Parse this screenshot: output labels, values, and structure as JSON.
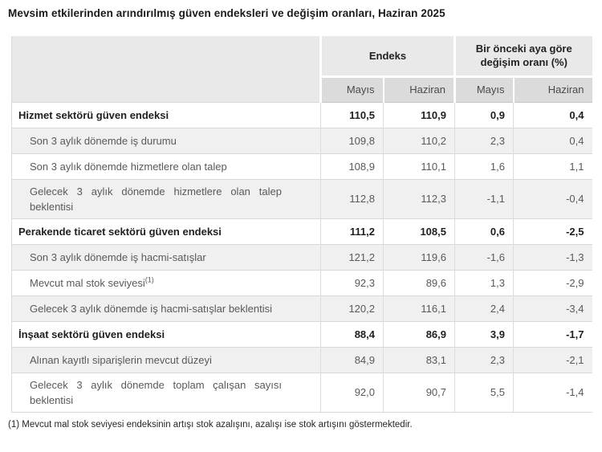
{
  "page": {
    "title": "Mevsim etkilerinden arındırılmış güven endeksleri ve değişim oranları, Haziran 2025",
    "footnote": "(1) Mevcut mal stok seviyesi endeksinin artışı stok azalışını, azalışı ise stok artışını göstermektedir."
  },
  "table": {
    "group_headers": [
      {
        "label": "Endeks"
      },
      {
        "label": "Bir önceki aya göre değişim oranı (%)"
      }
    ],
    "sub_headers": [
      "Mayıs",
      "Haziran",
      "Mayıs",
      "Haziran"
    ],
    "rows": [
      {
        "label": "Hizmet sektörü güven endeksi",
        "type": "section",
        "shaded": false,
        "values": [
          "110,5",
          "110,9",
          "0,9",
          "0,4"
        ]
      },
      {
        "label": "Son 3 aylık dönemde iş durumu",
        "type": "sub",
        "shaded": true,
        "values": [
          "109,8",
          "110,2",
          "2,3",
          "0,4"
        ]
      },
      {
        "label": "Son 3 aylık dönemde hizmetlere olan talep",
        "type": "sub",
        "shaded": false,
        "values": [
          "108,9",
          "110,1",
          "1,6",
          "1,1"
        ]
      },
      {
        "label": "Gelecek 3 aylık dönemde hizmetlere olan talep beklentisi",
        "type": "sub",
        "shaded": true,
        "values": [
          "112,8",
          "112,3",
          "-1,1",
          "-0,4"
        ]
      },
      {
        "label": "Perakende ticaret sektörü güven endeksi",
        "type": "section",
        "shaded": false,
        "values": [
          "111,2",
          "108,5",
          "0,6",
          "-2,5"
        ]
      },
      {
        "label": "Son 3 aylık dönemde iş hacmi-satışlar",
        "type": "sub",
        "shaded": true,
        "values": [
          "121,2",
          "119,6",
          "-1,6",
          "-1,3"
        ]
      },
      {
        "label": "Mevcut mal stok seviyesi",
        "superscript": "(1)",
        "type": "sub",
        "shaded": false,
        "values": [
          "92,3",
          "89,6",
          "1,3",
          "-2,9"
        ]
      },
      {
        "label": "Gelecek 3 aylık dönemde iş hacmi-satışlar beklentisi",
        "type": "sub",
        "shaded": true,
        "values": [
          "120,2",
          "116,1",
          "2,4",
          "-3,4"
        ]
      },
      {
        "label": "İnşaat sektörü güven endeksi",
        "type": "section",
        "shaded": false,
        "values": [
          "88,4",
          "86,9",
          "3,9",
          "-1,7"
        ]
      },
      {
        "label": "Alınan kayıtlı siparişlerin mevcut düzeyi",
        "type": "sub",
        "shaded": true,
        "values": [
          "84,9",
          "83,1",
          "2,3",
          "-2,1"
        ]
      },
      {
        "label": "Gelecek 3 aylık dönemde toplam çalışan sayısı beklentisi",
        "type": "sub",
        "shaded": false,
        "values": [
          "92,0",
          "90,7",
          "5,5",
          "-1,4"
        ]
      }
    ]
  },
  "colors": {
    "header_bg": "#e9e9e9",
    "subheader_bg": "#dbdbdb",
    "shaded_row_bg": "#f0f0f0",
    "border": "#d9d9d9",
    "text_dark": "#1f1f1f",
    "text_muted": "#595959"
  }
}
